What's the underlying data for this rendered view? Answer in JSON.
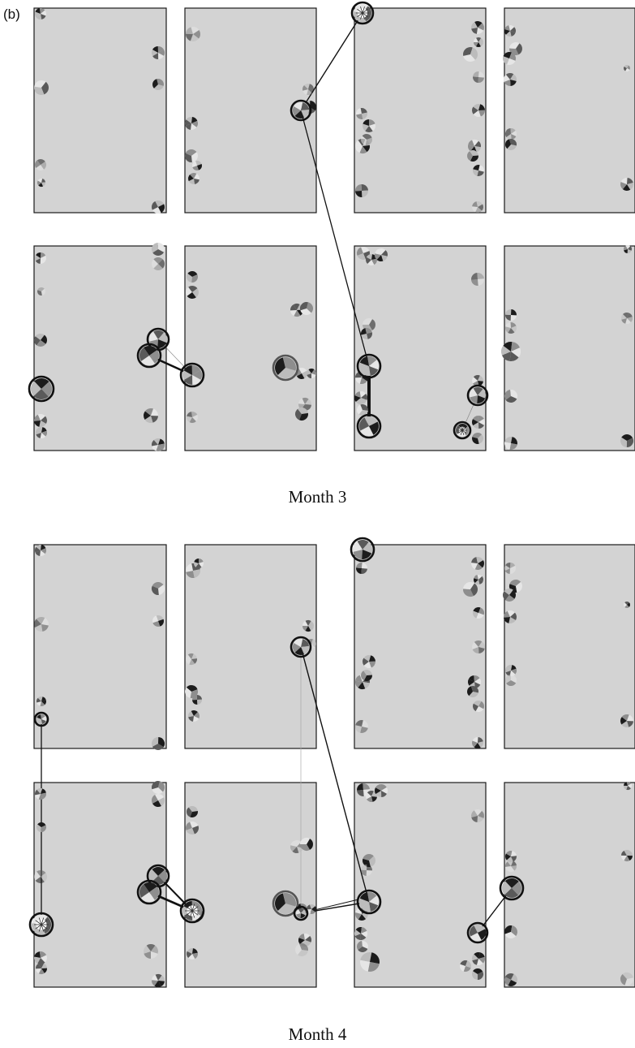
{
  "panel_label": "(b)",
  "captions": {
    "month3": "Month 3",
    "month4": "Month 4"
  },
  "colors": {
    "block_fill": "#d3d3d3",
    "block_border": "#1a1a1a",
    "link": "#111111",
    "pie_shades": [
      "#1c1c1c",
      "#5a5a5a",
      "#8e8e8e",
      "#bcbcbc",
      "#e6e6e6"
    ]
  }
}
